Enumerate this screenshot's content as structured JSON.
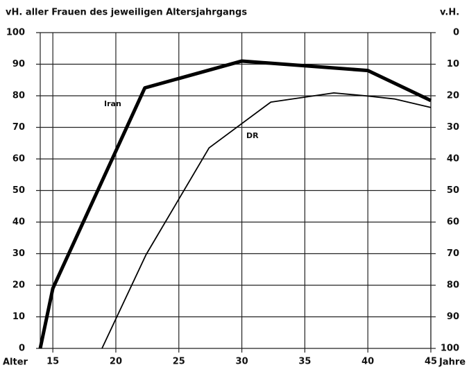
{
  "chart_data": {
    "type": "line",
    "title": "vH. aller Frauen des jeweiligen Altersjahrgangs",
    "y2label": "v.H.",
    "xlabel_left": "Alter",
    "xlabel_right": "Jahre",
    "xlim": [
      14,
      45
    ],
    "xticks": [
      15,
      20,
      25,
      30,
      35,
      40,
      45
    ],
    "ylim": [
      0,
      100
    ],
    "yticks": [
      0,
      10,
      20,
      30,
      40,
      50,
      60,
      70,
      80,
      90,
      100
    ],
    "y2lim": [
      100,
      0
    ],
    "y2ticks": [
      0,
      10,
      20,
      30,
      40,
      50,
      60,
      70,
      80,
      90,
      100
    ],
    "grid": true,
    "series": [
      {
        "name": "Iran",
        "color": "#000000",
        "x": [
          14,
          15,
          22.3,
          30,
          40,
          45
        ],
        "values": [
          0,
          19,
          82.5,
          91,
          88,
          78.5
        ]
      },
      {
        "name": "DR",
        "color": "#000000",
        "x": [
          18.9,
          22.4,
          27.4,
          32.3,
          37.3,
          39.8,
          42.1,
          45
        ],
        "values": [
          0,
          29.7,
          63.5,
          78,
          80.9,
          80,
          79,
          76.3
        ]
      }
    ]
  }
}
